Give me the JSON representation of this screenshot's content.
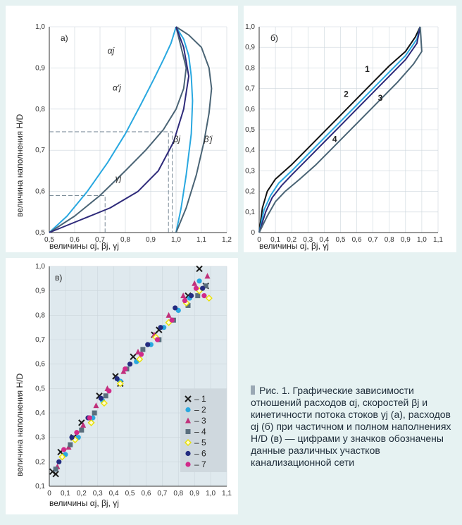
{
  "panel_a": {
    "label": "а)",
    "xlabel": "величины αj, βj, γj",
    "ylabel": "величина наполнения H/D",
    "xticks": [
      "0,5",
      "0,6",
      "0,7",
      "0,8",
      "0,9",
      "1,0",
      "1,1",
      "1,2"
    ],
    "yticks": [
      "0,5",
      "0,6",
      "0,7",
      "0,8",
      "0,9",
      "1,0"
    ],
    "curve_labels": [
      "αj",
      "α'j",
      "βj",
      "β'j",
      "γj"
    ]
  },
  "panel_b": {
    "label": "б)",
    "xlabel": "величины αj, βj, γj",
    "ylabel": "величина наполнения H/D",
    "xticks": [
      "0",
      "0,1",
      "0,2",
      "0,3",
      "0,4",
      "0,5",
      "0,6",
      "0,7",
      "0,8",
      "0,9",
      "1,0",
      "1,1"
    ],
    "yticks": [
      "0",
      "0,1",
      "0,2",
      "0,3",
      "0,4",
      "0,5",
      "0,6",
      "0,7",
      "0,8",
      "0,9",
      "1,0"
    ],
    "curve_labels": [
      "1",
      "2",
      "3",
      "4"
    ]
  },
  "panel_c": {
    "label": "в)",
    "xlabel": "величины αj, βj, γj",
    "ylabel": "величина наполнения H/D",
    "xticks": [
      "0",
      "0,1",
      "0,2",
      "0,3",
      "0,4",
      "0,5",
      "0,6",
      "0,7",
      "0,8",
      "0,9",
      "1,0",
      "1,1"
    ],
    "yticks": [
      "0,1",
      "0,2",
      "0,3",
      "0,4",
      "0,5",
      "0,6",
      "0,7",
      "0,8",
      "0,9",
      "1,0"
    ],
    "legend": [
      "– 1",
      "– 2",
      "– 3",
      "– 4",
      "– 5",
      "– 6",
      "– 7"
    ]
  },
  "caption": "Рис. 1. Графические зависимости отношений расходов αj, скоростей βj и кинетичности потока стоков γj (а), расходов αj (б) при частичном и полном наполнениях H/D (в) — цифрами у значков обозначены данные различных участков канализационной сети",
  "colors": {
    "alpha": "#29a8e0",
    "alpha_full": "#4a6475",
    "beta": "#29a8e0",
    "beta_full": "#4a6475",
    "gamma": "#2e2a7a",
    "s1": "#111111",
    "s2": "#29a8e0",
    "s3": "#2e2a7a",
    "s4": "#4a6475",
    "m1": "#1a1a1a",
    "m2": "#29a8e0",
    "m3": "#c0307a",
    "m4": "#5a6e7d",
    "m5": "#e8e000",
    "m6": "#232c80",
    "m7": "#d12a8a"
  },
  "chart_data": [
    {
      "type": "line",
      "xlim": [
        0.5,
        1.2
      ],
      "ylim": [
        0.5,
        1.0
      ],
      "guides": [
        {
          "x": 0.72,
          "y": 0.59
        },
        {
          "x": 0.97,
          "y": 0.745
        },
        {
          "x": 0.985,
          "y": 0.745
        }
      ],
      "series": [
        {
          "name": "αj",
          "x": [
            0.5,
            0.57,
            0.65,
            0.73,
            0.8,
            0.86,
            0.91,
            0.95,
            0.98,
            1.0
          ],
          "y": [
            0.5,
            0.54,
            0.6,
            0.67,
            0.74,
            0.81,
            0.87,
            0.92,
            0.96,
            1.0
          ]
        },
        {
          "name": "α'j",
          "x": [
            0.5,
            0.6,
            0.7,
            0.8,
            0.88,
            0.95,
            1.0,
            1.03,
            1.04,
            1.0
          ],
          "y": [
            0.5,
            0.54,
            0.59,
            0.65,
            0.7,
            0.75,
            0.8,
            0.85,
            0.9,
            1.0
          ]
        },
        {
          "name": "βj",
          "x": [
            1.0,
            1.02,
            1.04,
            1.06,
            1.065,
            1.06,
            1.05,
            1.03,
            1.0
          ],
          "y": [
            0.5,
            0.56,
            0.64,
            0.74,
            0.82,
            0.88,
            0.93,
            0.97,
            1.0
          ]
        },
        {
          "name": "β'j",
          "x": [
            1.0,
            1.04,
            1.08,
            1.11,
            1.13,
            1.14,
            1.13,
            1.1,
            1.05,
            1.0
          ],
          "y": [
            0.5,
            0.56,
            0.64,
            0.72,
            0.79,
            0.85,
            0.9,
            0.95,
            0.98,
            1.0
          ]
        },
        {
          "name": "γj",
          "x": [
            0.5,
            0.62,
            0.74,
            0.85,
            0.93,
            0.99,
            1.03,
            1.05,
            1.03,
            1.0
          ],
          "y": [
            0.5,
            0.53,
            0.56,
            0.6,
            0.65,
            0.72,
            0.8,
            0.88,
            0.95,
            1.0
          ]
        }
      ]
    },
    {
      "type": "line",
      "xlim": [
        0,
        1.1
      ],
      "ylim": [
        0,
        1.0
      ],
      "series": [
        {
          "name": "1",
          "x": [
            0,
            0.02,
            0.05,
            0.1,
            0.2,
            0.3,
            0.4,
            0.5,
            0.6,
            0.7,
            0.8,
            0.9,
            0.96,
            0.99
          ],
          "y": [
            0,
            0.12,
            0.2,
            0.26,
            0.33,
            0.41,
            0.49,
            0.57,
            0.65,
            0.73,
            0.81,
            0.88,
            0.95,
            1.0
          ]
        },
        {
          "name": "2",
          "x": [
            0,
            0.03,
            0.07,
            0.12,
            0.2,
            0.3,
            0.4,
            0.5,
            0.6,
            0.7,
            0.8,
            0.9,
            0.97,
            0.99
          ],
          "y": [
            0,
            0.11,
            0.18,
            0.24,
            0.3,
            0.38,
            0.46,
            0.54,
            0.62,
            0.7,
            0.78,
            0.86,
            0.94,
            1.0
          ]
        },
        {
          "name": "3",
          "x": [
            0,
            0.04,
            0.08,
            0.14,
            0.2,
            0.3,
            0.4,
            0.5,
            0.6,
            0.7,
            0.8,
            0.9,
            0.97,
            0.99
          ],
          "y": [
            0,
            0.1,
            0.17,
            0.23,
            0.28,
            0.36,
            0.44,
            0.52,
            0.6,
            0.68,
            0.76,
            0.84,
            0.92,
            1.0
          ]
        },
        {
          "name": "4",
          "x": [
            0,
            0.05,
            0.1,
            0.16,
            0.25,
            0.35,
            0.45,
            0.55,
            0.65,
            0.75,
            0.85,
            0.95,
            1.0,
            0.99
          ],
          "y": [
            0,
            0.08,
            0.15,
            0.2,
            0.26,
            0.33,
            0.41,
            0.49,
            0.57,
            0.65,
            0.73,
            0.82,
            0.88,
            1.0
          ]
        }
      ]
    },
    {
      "type": "scatter",
      "xlim": [
        0,
        1.1
      ],
      "ylim": [
        0.1,
        1.0
      ],
      "series": [
        {
          "name": "1",
          "x": [
            0.02,
            0.04,
            0.07,
            0.15,
            0.2,
            0.26,
            0.31,
            0.41,
            0.44,
            0.52,
            0.65,
            0.68,
            0.86,
            0.93,
            0.97
          ],
          "y": [
            0.16,
            0.15,
            0.24,
            0.3,
            0.36,
            0.37,
            0.47,
            0.55,
            0.52,
            0.63,
            0.72,
            0.74,
            0.88,
            0.99,
            0.92
          ]
        },
        {
          "name": "2",
          "x": [
            0.04,
            0.1,
            0.18,
            0.27,
            0.33,
            0.44,
            0.54,
            0.63,
            0.71,
            0.8,
            0.87,
            0.93
          ],
          "y": [
            0.17,
            0.23,
            0.3,
            0.38,
            0.45,
            0.53,
            0.61,
            0.68,
            0.75,
            0.82,
            0.87,
            0.94
          ]
        },
        {
          "name": "3",
          "x": [
            0.05,
            0.12,
            0.21,
            0.29,
            0.36,
            0.46,
            0.55,
            0.65,
            0.74,
            0.83,
            0.9,
            0.98
          ],
          "y": [
            0.18,
            0.26,
            0.35,
            0.43,
            0.5,
            0.57,
            0.65,
            0.72,
            0.8,
            0.88,
            0.93,
            0.96
          ]
        },
        {
          "name": "4",
          "x": [
            0.04,
            0.13,
            0.2,
            0.28,
            0.35,
            0.48,
            0.58,
            0.68,
            0.77,
            0.86,
            0.92,
            0.97
          ],
          "y": [
            0.17,
            0.27,
            0.33,
            0.4,
            0.47,
            0.58,
            0.66,
            0.7,
            0.78,
            0.84,
            0.88,
            0.92
          ]
        },
        {
          "name": "5",
          "x": [
            0.08,
            0.16,
            0.26,
            0.34,
            0.44,
            0.56,
            0.66,
            0.74,
            0.85,
            0.93,
            0.99
          ],
          "y": [
            0.22,
            0.29,
            0.36,
            0.44,
            0.52,
            0.62,
            0.71,
            0.77,
            0.85,
            0.9,
            0.87
          ]
        },
        {
          "name": "6",
          "x": [
            0.06,
            0.14,
            0.24,
            0.32,
            0.42,
            0.5,
            0.61,
            0.69,
            0.78,
            0.88,
            0.95
          ],
          "y": [
            0.2,
            0.3,
            0.38,
            0.46,
            0.54,
            0.6,
            0.68,
            0.75,
            0.83,
            0.88,
            0.91
          ]
        },
        {
          "name": "7",
          "x": [
            0.09,
            0.17,
            0.25,
            0.37,
            0.47,
            0.57,
            0.67,
            0.76,
            0.84,
            0.91,
            0.96
          ],
          "y": [
            0.25,
            0.32,
            0.38,
            0.49,
            0.58,
            0.64,
            0.7,
            0.78,
            0.86,
            0.91,
            0.88
          ]
        }
      ]
    }
  ]
}
